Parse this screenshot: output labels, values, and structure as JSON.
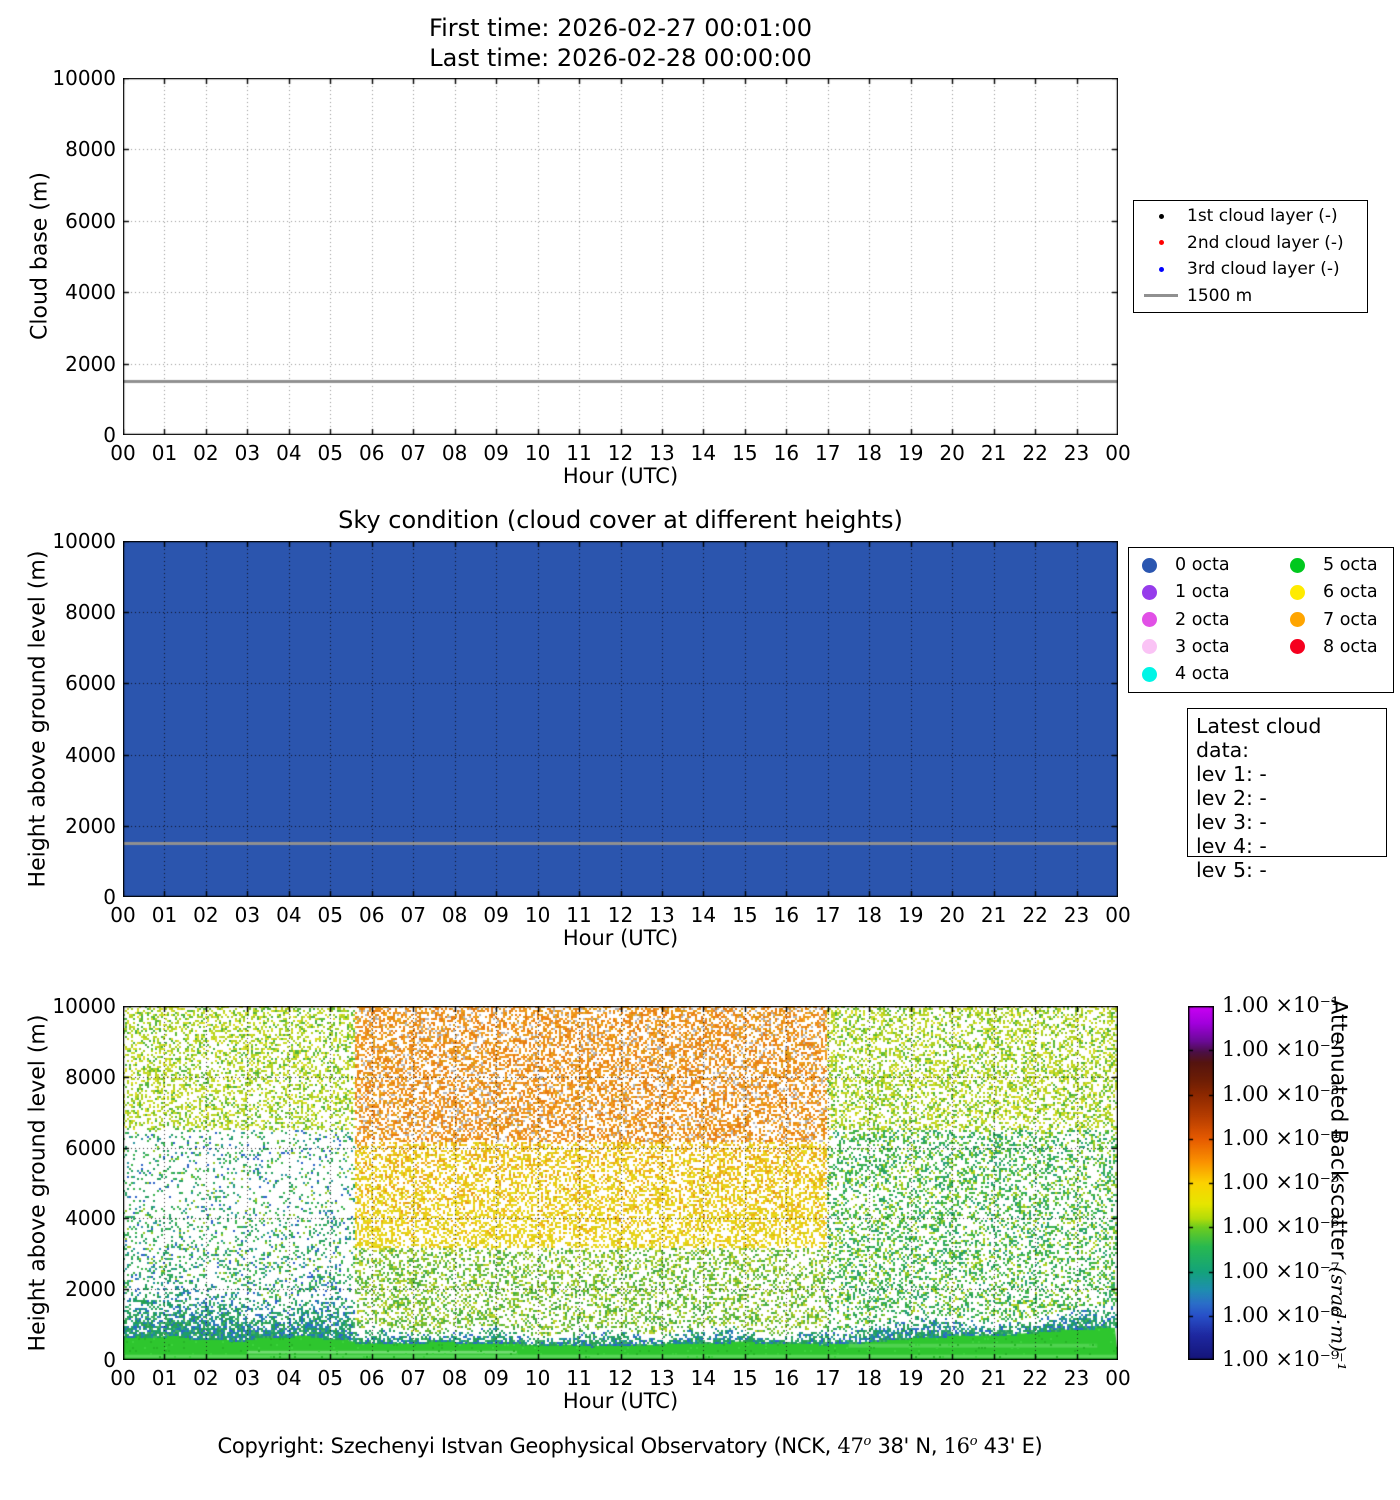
{
  "figure": {
    "title_line1": "First time: 2026-02-27 00:01:00",
    "title_line2": "Last time: 2026-02-28 00:00:00",
    "hour_label": "Hour (UTC)",
    "hours": [
      "00",
      "01",
      "02",
      "03",
      "04",
      "05",
      "06",
      "07",
      "08",
      "09",
      "10",
      "11",
      "12",
      "13",
      "14",
      "15",
      "16",
      "17",
      "18",
      "19",
      "20",
      "21",
      "22",
      "23",
      "00"
    ],
    "height_ticks": [
      "0",
      "2000",
      "4000",
      "6000",
      "8000",
      "10000"
    ]
  },
  "panel1": {
    "ylabel": "Cloud base (m)",
    "legend": [
      {
        "label": "1st cloud layer (-)",
        "marker": "dot",
        "color": "#000000"
      },
      {
        "label": "2nd cloud layer (-)",
        "marker": "dot",
        "color": "#ff0000"
      },
      {
        "label": "3rd cloud layer (-)",
        "marker": "dot",
        "color": "#0000ff"
      },
      {
        "label": "1500 m",
        "marker": "line",
        "color": "#909090"
      }
    ],
    "refline": {
      "value": 1500,
      "color": "#909090"
    }
  },
  "panel2": {
    "title": "Sky condition (cloud cover at different heights)",
    "ylabel": "Height above ground level (m)",
    "fill_color": "#2b55ae",
    "refline": {
      "value": 1500,
      "color": "#909090"
    },
    "octa_legend": [
      {
        "label": "0 octa",
        "color": "#2b56b0"
      },
      {
        "label": "1 octa",
        "color": "#963ceb"
      },
      {
        "label": "2 octa",
        "color": "#e150e6"
      },
      {
        "label": "3 octa",
        "color": "#fac3f5"
      },
      {
        "label": "4 octa",
        "color": "#00f5e6"
      },
      {
        "label": "5 octa",
        "color": "#00c81e"
      },
      {
        "label": "6 octa",
        "color": "#ffeb00"
      },
      {
        "label": "7 octa",
        "color": "#ffa500"
      },
      {
        "label": "8 octa",
        "color": "#f5001e"
      }
    ],
    "latest_box": {
      "title": "Latest cloud data:",
      "lines": [
        "lev 1: -",
        "lev 2: -",
        "lev 3: -",
        "lev 4: -",
        "lev 5: -"
      ]
    }
  },
  "panel3": {
    "ylabel": "Height above ground level (m)",
    "colorbar": {
      "tick_labels": [
        "1.00 ×10⁻¹",
        "1.00 ×10⁻²",
        "1.00 ×10⁻³",
        "1.00 ×10⁻⁴",
        "1.00 ×10⁻⁵",
        "1.00 ×10⁻⁶",
        "1.00 ×10⁻⁷",
        "1.00 ×10⁻⁸",
        "1.00 ×10⁻⁹"
      ],
      "label_main": "Attenuated Backscatter ",
      "label_unit": "(srad·m)⁻¹",
      "gradient": [
        [
          0.0,
          "#cb00f5"
        ],
        [
          0.05,
          "#a100dc"
        ],
        [
          0.1,
          "#6a0a96"
        ],
        [
          0.13,
          "#4b0f46"
        ],
        [
          0.16,
          "#55140f"
        ],
        [
          0.21,
          "#6e1e05"
        ],
        [
          0.25,
          "#8c2800"
        ],
        [
          0.31,
          "#b43c00"
        ],
        [
          0.375,
          "#e65a00"
        ],
        [
          0.44,
          "#fa9100"
        ],
        [
          0.5,
          "#fcd200"
        ],
        [
          0.56,
          "#e6e600"
        ],
        [
          0.6,
          "#b4dc0a"
        ],
        [
          0.625,
          "#6ecd1e"
        ],
        [
          0.68,
          "#28b950"
        ],
        [
          0.75,
          "#14a37a"
        ],
        [
          0.8,
          "#1e8fae"
        ],
        [
          0.84,
          "#2b6ec8"
        ],
        [
          0.875,
          "#2850c8"
        ],
        [
          0.93,
          "#1e28a0"
        ],
        [
          1.0,
          "#141478"
        ]
      ]
    }
  },
  "copyright": {
    "prefix": "Copyright: Szechenyi Istvan Geophysical Observatory (NCK, ",
    "lat_deg": "47",
    "lat_sup": "o",
    "lat_rest": " 38' N, ",
    "lon_deg": "16",
    "lon_sup": "o",
    "lon_rest": " 43' E)"
  },
  "chart_data": [
    {
      "id": "cloud_base",
      "type": "scatter",
      "title": "First time: 2026-02-27 00:01:00 | Last time: 2026-02-28 00:00:00",
      "xlabel": "Hour (UTC)",
      "ylabel": "Cloud base (m)",
      "x_range_hours": [
        0,
        24
      ],
      "ylim": [
        0,
        10000
      ],
      "x_tick_labels": [
        "00",
        "01",
        "02",
        "03",
        "04",
        "05",
        "06",
        "07",
        "08",
        "09",
        "10",
        "11",
        "12",
        "13",
        "14",
        "15",
        "16",
        "17",
        "18",
        "19",
        "20",
        "21",
        "22",
        "23",
        "00"
      ],
      "y_ticks": [
        0,
        2000,
        4000,
        6000,
        8000,
        10000
      ],
      "grid": true,
      "legend_position": "right-outside",
      "series": [
        {
          "name": "1st cloud layer (-)",
          "color": "#000000",
          "points": []
        },
        {
          "name": "2nd cloud layer (-)",
          "color": "#ff0000",
          "points": []
        },
        {
          "name": "3rd cloud layer (-)",
          "color": "#0000ff",
          "points": []
        }
      ],
      "reference_line": {
        "y": 1500,
        "label": "1500 m",
        "color": "#909090"
      },
      "note": "No cloud-base points plotted; panel is empty except the 1500 m reference line."
    },
    {
      "id": "sky_condition",
      "type": "heatmap",
      "title": "Sky condition (cloud cover at different heights)",
      "xlabel": "Hour (UTC)",
      "ylabel": "Height above ground level (m)",
      "x_range_hours": [
        0,
        24
      ],
      "ylim": [
        0,
        10000
      ],
      "grid": true,
      "uniform_value": "0 octa",
      "value_scale_octa": [
        "0 octa",
        "1 octa",
        "2 octa",
        "3 octa",
        "4 octa",
        "5 octa",
        "6 octa",
        "7 octa",
        "8 octa"
      ],
      "reference_line": {
        "y": 1500,
        "color": "#909090"
      },
      "latest_cloud_data": {
        "lev 1": "-",
        "lev 2": "-",
        "lev 3": "-",
        "lev 4": "-",
        "lev 5": "-"
      }
    },
    {
      "id": "attenuated_backscatter",
      "type": "heatmap",
      "xlabel": "Hour (UTC)",
      "ylabel": "Height above ground level (m)",
      "x_range_hours": [
        0,
        24
      ],
      "ylim": [
        0,
        10000
      ],
      "grid": true,
      "colorbar": {
        "label": "Attenuated Backscatter (srad·m)⁻¹",
        "scale": "log",
        "range": [
          1e-09,
          0.1
        ],
        "tick_values": [
          0.1,
          0.01,
          0.001,
          0.0001,
          1e-05,
          1e-06,
          1e-07,
          1e-08,
          1e-09
        ]
      },
      "regions": [
        {
          "hours": [
            0,
            5.5
          ],
          "height_m": [
            6500,
            10000
          ],
          "approx_value": "1e-6 to 1e-5 (yellow-green speckle)"
        },
        {
          "hours": [
            0,
            5.5
          ],
          "height_m": [
            2000,
            6500
          ],
          "approx_value": "~1e-7 (sparse green speckle)"
        },
        {
          "hours": [
            0,
            5.5
          ],
          "height_m": [
            650,
            2100
          ],
          "approx_value": "1e-7 to 1e-8 (dense teal/blue)"
        },
        {
          "hours": [
            5.5,
            17
          ],
          "height_m": [
            6200,
            10000
          ],
          "approx_value": "~1e-4 (dense orange speckle)"
        },
        {
          "hours": [
            5.5,
            17
          ],
          "height_m": [
            3200,
            6200
          ],
          "approx_value": "~1e-5 (yellow speckle)"
        },
        {
          "hours": [
            5.5,
            17
          ],
          "height_m": [
            500,
            3200
          ],
          "approx_value": "~1e-6 (green speckle)"
        },
        {
          "hours": [
            17,
            24
          ],
          "height_m": [
            1000,
            10000
          ],
          "approx_value": "~1e-6 (green / yellow-green speckle)"
        },
        {
          "hours": [
            0,
            24
          ],
          "height_m": [
            0,
            950
          ],
          "approx_value": "~1e-6 solid green boundary layer, top rising after 17:00"
        }
      ]
    }
  ]
}
